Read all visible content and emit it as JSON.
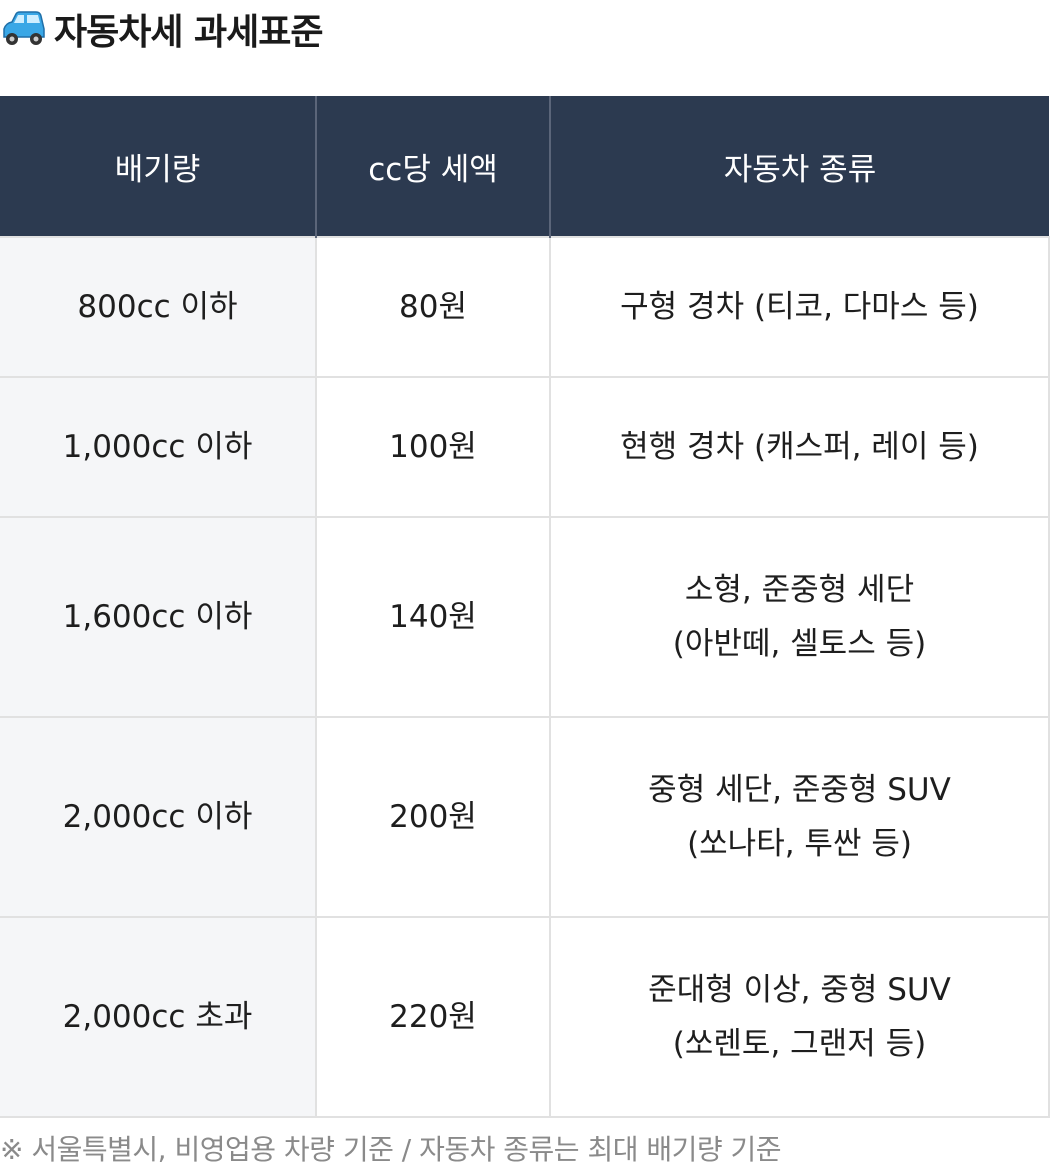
{
  "title": {
    "icon": "car-icon",
    "text": "자동차세 과세표준"
  },
  "table": {
    "headers": [
      "배기량",
      "cc당 세액",
      "자동차 종류"
    ],
    "rows": [
      {
        "displacement": "800cc 이하",
        "tax": "80원",
        "type": [
          "구형 경차 (티코, 다마스 등)"
        ]
      },
      {
        "displacement": "1,000cc 이하",
        "tax": "100원",
        "type": [
          "현행 경차 (캐스퍼, 레이 등)"
        ]
      },
      {
        "displacement": "1,600cc 이하",
        "tax": "140원",
        "type": [
          "소형, 준중형 세단",
          "(아반떼, 셀토스 등)"
        ]
      },
      {
        "displacement": "2,000cc 이하",
        "tax": "200원",
        "type": [
          "중형 세단, 준중형 SUV",
          "(쏘나타, 투싼 등)"
        ]
      },
      {
        "displacement": "2,000cc 초과",
        "tax": "220원",
        "type": [
          "준대형 이상, 중형 SUV",
          "(쏘렌토, 그랜저 등)"
        ]
      }
    ]
  },
  "footnote": "※ 서울특별시, 비영업용 차량 기준 / 자동차 종류는 최대 배기량 기준",
  "colors": {
    "header_bg": "#2c3a50",
    "first_col_bg": "#f5f6f8",
    "border": "#e1e1e1",
    "footnote": "#8a8a8a"
  }
}
